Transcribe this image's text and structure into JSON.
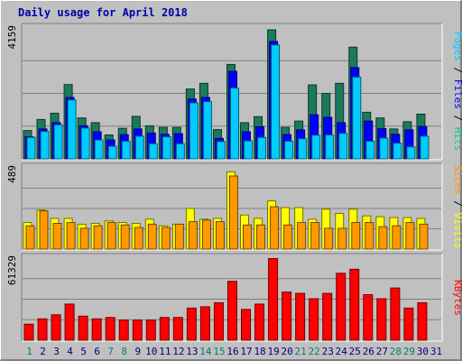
{
  "title": "Daily usage for April 2018",
  "colors": {
    "hits": "#00cc99",
    "hits_dark": "#1b7a5c",
    "files": "#0000ff",
    "pages": "#00ccff",
    "visits": "#ffff00",
    "sites": "#ff9900",
    "kbytes": "#ff0000",
    "weekend_label": "#00806b",
    "weekday_label": "#000080",
    "panel_bg": "#c0c0c0",
    "grid": "#808080"
  },
  "legend": {
    "top": [
      {
        "text": "Pages",
        "color": "#00ccff"
      },
      {
        "text": " / ",
        "color": "#000000"
      },
      {
        "text": "Files",
        "color": "#0000ff"
      },
      {
        "text": " / ",
        "color": "#000000"
      },
      {
        "text": "Hits",
        "color": "#00cc99"
      }
    ],
    "mid": [
      {
        "text": "Sites",
        "color": "#ff9900"
      },
      {
        "text": " / ",
        "color": "#000000"
      },
      {
        "text": "Visits",
        "color": "#ffff00"
      }
    ],
    "bottom": [
      {
        "text": "KBytes",
        "color": "#ff0000"
      }
    ]
  },
  "chart_data": [
    {
      "type": "bar",
      "categories": [
        "1",
        "2",
        "3",
        "4",
        "5",
        "6",
        "7",
        "8",
        "9",
        "10",
        "11",
        "12",
        "13",
        "14",
        "15",
        "16",
        "17",
        "18",
        "19",
        "20",
        "21",
        "22",
        "23",
        "24",
        "25",
        "26",
        "27",
        "28",
        "29",
        "30",
        "31"
      ],
      "weekend_days": [
        "1",
        "7",
        "8",
        "14",
        "15",
        "21",
        "22",
        "28",
        "29"
      ],
      "ymax_label": "4159",
      "ylim": [
        0,
        4159
      ],
      "series": [
        {
          "name": "Hits",
          "values": [
            900,
            1250,
            1450,
            2360,
            1300,
            1150,
            760,
            970,
            1350,
            1050,
            1000,
            1000,
            2220,
            2400,
            930,
            3000,
            1150,
            1340,
            4100,
            1000,
            1200,
            2350,
            2080,
            2400,
            3550,
            1480,
            1300,
            950,
            1180,
            1420,
            0
          ]
        },
        {
          "name": "Files",
          "values": [
            700,
            950,
            1150,
            1950,
            1050,
            860,
            600,
            770,
            950,
            820,
            780,
            800,
            1900,
            1950,
            650,
            2780,
            860,
            1020,
            3730,
            770,
            920,
            1400,
            1320,
            1150,
            2900,
            1200,
            960,
            780,
            920,
            1030,
            0
          ]
        },
        {
          "name": "Pages",
          "values": [
            680,
            870,
            1080,
            1870,
            980,
            600,
            400,
            560,
            720,
            480,
            700,
            480,
            1780,
            1820,
            550,
            2250,
            570,
            680,
            3620,
            560,
            640,
            750,
            760,
            810,
            2600,
            560,
            660,
            500,
            380,
            720,
            0
          ]
        }
      ]
    },
    {
      "type": "bar",
      "categories": [
        "1",
        "2",
        "3",
        "4",
        "5",
        "6",
        "7",
        "8",
        "9",
        "10",
        "11",
        "12",
        "13",
        "14",
        "15",
        "16",
        "17",
        "18",
        "19",
        "20",
        "21",
        "22",
        "23",
        "24",
        "25",
        "26",
        "27",
        "28",
        "29",
        "30",
        "31"
      ],
      "ymax_label": "489",
      "ylim": [
        0,
        489
      ],
      "series": [
        {
          "name": "Visits",
          "values": [
            160,
            235,
            185,
            185,
            150,
            155,
            170,
            160,
            155,
            180,
            140,
            150,
            245,
            180,
            185,
            465,
            205,
            185,
            290,
            250,
            250,
            180,
            240,
            215,
            240,
            200,
            195,
            190,
            190,
            185,
            0
          ]
        },
        {
          "name": "Sites",
          "values": [
            140,
            230,
            155,
            160,
            125,
            140,
            160,
            145,
            130,
            150,
            130,
            150,
            165,
            175,
            165,
            440,
            145,
            145,
            255,
            145,
            160,
            160,
            125,
            125,
            160,
            160,
            135,
            140,
            160,
            150,
            0
          ]
        }
      ]
    },
    {
      "type": "bar",
      "categories": [
        "1",
        "2",
        "3",
        "4",
        "5",
        "6",
        "7",
        "8",
        "9",
        "10",
        "11",
        "12",
        "13",
        "14",
        "15",
        "16",
        "17",
        "18",
        "19",
        "20",
        "21",
        "22",
        "23",
        "24",
        "25",
        "26",
        "27",
        "28",
        "29",
        "30",
        "31"
      ],
      "ymax_label": "61329",
      "ylim": [
        0,
        61329
      ],
      "series": [
        {
          "name": "KBytes",
          "values": [
            12000,
            16000,
            19000,
            27000,
            18000,
            16000,
            17000,
            15000,
            15000,
            15000,
            17000,
            17000,
            24000,
            25000,
            28000,
            44000,
            23000,
            27000,
            61000,
            36000,
            35000,
            31000,
            35000,
            50000,
            53000,
            34000,
            31000,
            39000,
            24000,
            28000,
            0
          ]
        }
      ]
    }
  ],
  "x_labels": [
    "1",
    "2",
    "3",
    "4",
    "5",
    "6",
    "7",
    "8",
    "9",
    "10",
    "11",
    "12",
    "13",
    "14",
    "15",
    "16",
    "17",
    "18",
    "19",
    "20",
    "21",
    "22",
    "23",
    "24",
    "25",
    "26",
    "27",
    "28",
    "29",
    "30",
    "31"
  ]
}
